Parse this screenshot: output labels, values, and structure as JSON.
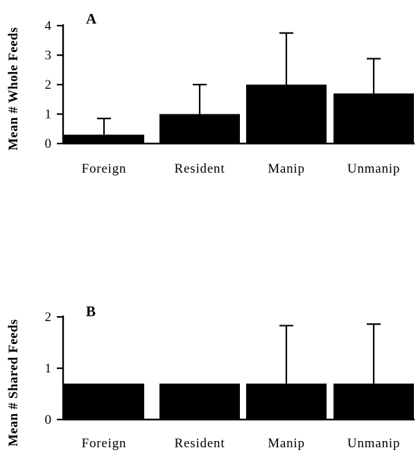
{
  "chart_data": [
    {
      "type": "bar",
      "panel_label": "A",
      "ylabel": "Mean # Whole Feeds",
      "xlabel": "",
      "categories": [
        "Foreign",
        "Resident",
        "Manip",
        "Unmanip"
      ],
      "values": [
        0.3,
        1.0,
        2.0,
        1.7
      ],
      "error_upper": [
        0.85,
        2.0,
        3.75,
        2.88
      ],
      "ylim": [
        0,
        4
      ],
      "yticks": [
        0,
        1,
        2,
        3,
        4
      ],
      "grid": false,
      "bar_color": "#000000"
    },
    {
      "type": "bar",
      "panel_label": "B",
      "ylabel": "Mean # Shared Feeds",
      "xlabel": "",
      "categories": [
        "Foreign",
        "Resident",
        "Manip",
        "Unmanip"
      ],
      "values": [
        0.7,
        0.7,
        0.7,
        0.7
      ],
      "error_upper": [
        0.7,
        0.7,
        1.83,
        1.86
      ],
      "ylim": [
        0,
        2
      ],
      "yticks": [
        0,
        1,
        2
      ],
      "grid": false,
      "bar_color": "#000000"
    }
  ]
}
